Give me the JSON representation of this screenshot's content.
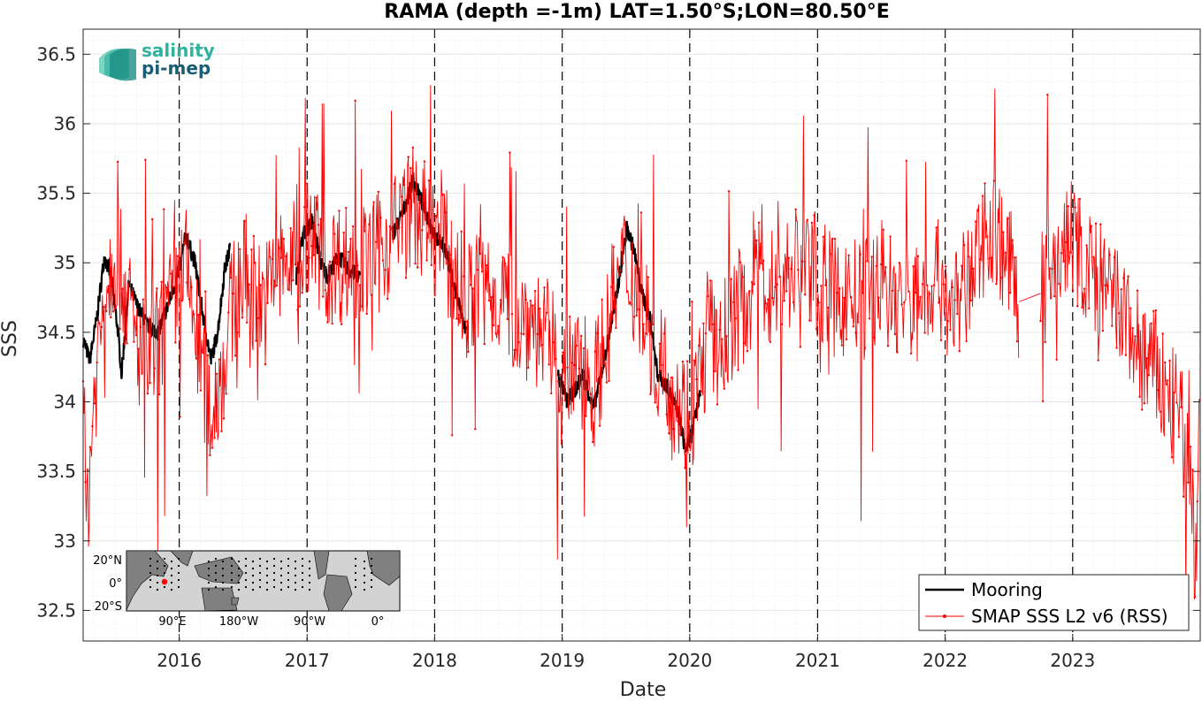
{
  "chart_data": {
    "type": "line",
    "title": "RAMA (depth =-1m) LAT=1.50°S;LON=80.50°E",
    "xlabel": "Date",
    "ylabel": "SSS",
    "x_type": "date",
    "xlim": [
      "2015-04-01",
      "2024-01-01"
    ],
    "ylim": [
      32.28,
      36.68
    ],
    "yticks": [
      32.5,
      33,
      33.5,
      34,
      34.5,
      35,
      35.5,
      36,
      36.5
    ],
    "ytick_labels": [
      "32.5",
      "33",
      "33.5",
      "34",
      "34.5",
      "35",
      "35.5",
      "36",
      "36.5"
    ],
    "xticks": [
      "2016-01-01",
      "2017-01-01",
      "2018-01-01",
      "2019-01-01",
      "2020-01-01",
      "2021-01-01",
      "2022-01-01",
      "2023-01-01"
    ],
    "xtick_labels": [
      "2016",
      "2017",
      "2018",
      "2019",
      "2020",
      "2021",
      "2022",
      "2023"
    ],
    "year_dividers": "dashed black vertical lines at each January 1",
    "grid": true,
    "legend_placement": "bottom-right",
    "series": [
      {
        "name": "Mooring",
        "color": "#000000",
        "style": "thick line",
        "segments": [
          [
            [
              "2015-04-01",
              34.45
            ],
            [
              "2015-04-20",
              34.3
            ],
            [
              "2015-05-10",
              34.6
            ],
            [
              "2015-06-01",
              35.05
            ],
            [
              "2015-06-20",
              34.9
            ],
            [
              "2015-07-10",
              34.5
            ],
            [
              "2015-07-20",
              34.2
            ],
            [
              "2015-08-10",
              34.85
            ],
            [
              "2015-09-01",
              34.7
            ],
            [
              "2015-10-01",
              34.55
            ],
            [
              "2015-11-01",
              34.5
            ],
            [
              "2015-12-01",
              34.7
            ],
            [
              "2016-01-01",
              34.95
            ],
            [
              "2016-01-20",
              35.2
            ],
            [
              "2016-02-15",
              35.0
            ],
            [
              "2016-03-10",
              34.6
            ],
            [
              "2016-04-01",
              34.3
            ],
            [
              "2016-04-20",
              34.5
            ],
            [
              "2016-05-10",
              34.95
            ],
            [
              "2016-05-25",
              35.1
            ]
          ],
          [
            [
              "2016-12-01",
              34.9
            ],
            [
              "2016-12-20",
              35.2
            ],
            [
              "2017-01-15",
              35.3
            ],
            [
              "2017-02-10",
              35.0
            ],
            [
              "2017-03-01",
              34.9
            ],
            [
              "2017-04-01",
              35.05
            ],
            [
              "2017-05-01",
              34.95
            ],
            [
              "2017-06-01",
              34.9
            ]
          ],
          [
            [
              "2017-09-01",
              35.2
            ],
            [
              "2017-10-01",
              35.35
            ],
            [
              "2017-11-01",
              35.6
            ],
            [
              "2017-12-01",
              35.4
            ],
            [
              "2018-01-01",
              35.2
            ],
            [
              "2018-02-01",
              35.1
            ],
            [
              "2018-03-01",
              34.8
            ],
            [
              "2018-04-01",
              34.5
            ]
          ],
          [
            [
              "2018-12-20",
              34.2
            ],
            [
              "2019-01-15",
              34.0
            ],
            [
              "2019-02-10",
              34.1
            ],
            [
              "2019-03-01",
              34.2
            ],
            [
              "2019-04-01",
              33.95
            ],
            [
              "2019-05-01",
              34.3
            ],
            [
              "2019-06-01",
              34.7
            ],
            [
              "2019-06-20",
              35.0
            ],
            [
              "2019-07-05",
              35.25
            ],
            [
              "2019-07-25",
              35.1
            ],
            [
              "2019-08-15",
              34.8
            ],
            [
              "2019-09-10",
              34.6
            ],
            [
              "2019-10-01",
              34.2
            ],
            [
              "2019-11-01",
              34.1
            ],
            [
              "2019-12-01",
              33.9
            ],
            [
              "2019-12-20",
              33.65
            ],
            [
              "2020-01-10",
              33.8
            ],
            [
              "2020-02-01",
              34.1
            ]
          ]
        ]
      },
      {
        "name": "SMAP SSS L2 v6 (RSS)",
        "color": "#ff0000",
        "style": "thin line with point markers",
        "segments": [
          [
            [
              "2015-04-01",
              34.2
            ],
            [
              "2015-04-10",
              33.1
            ],
            [
              "2015-05-01",
              34.0
            ],
            [
              "2015-06-01",
              34.8
            ],
            [
              "2015-07-01",
              35.1
            ],
            [
              "2015-08-01",
              34.8
            ],
            [
              "2015-09-01",
              34.4
            ],
            [
              "2015-10-01",
              34.3
            ],
            [
              "2015-11-01",
              34.4
            ],
            [
              "2015-12-01",
              34.6
            ],
            [
              "2016-01-01",
              34.9
            ],
            [
              "2016-02-01",
              34.8
            ],
            [
              "2016-03-01",
              34.3
            ],
            [
              "2016-04-01",
              33.9
            ],
            [
              "2016-05-01",
              34.2
            ],
            [
              "2016-06-01",
              34.7
            ],
            [
              "2016-07-01",
              34.9
            ],
            [
              "2016-08-01",
              34.8
            ],
            [
              "2016-09-01",
              34.7
            ],
            [
              "2016-10-01",
              34.9
            ],
            [
              "2016-11-01",
              35.0
            ],
            [
              "2016-12-01",
              35.0
            ],
            [
              "2017-01-01",
              35.2
            ],
            [
              "2017-02-01",
              35.1
            ],
            [
              "2017-03-01",
              35.0
            ],
            [
              "2017-04-01",
              35.0
            ],
            [
              "2017-05-01",
              35.0
            ],
            [
              "2017-06-01",
              35.0
            ],
            [
              "2017-07-01",
              35.0
            ],
            [
              "2017-08-01",
              35.1
            ],
            [
              "2017-09-01",
              35.2
            ],
            [
              "2017-10-01",
              35.3
            ],
            [
              "2017-11-01",
              35.4
            ],
            [
              "2017-12-01",
              35.3
            ],
            [
              "2018-01-01",
              35.2
            ],
            [
              "2018-02-01",
              35.1
            ],
            [
              "2018-03-01",
              34.9
            ],
            [
              "2018-04-01",
              34.7
            ],
            [
              "2018-05-01",
              34.8
            ],
            [
              "2018-06-01",
              34.9
            ],
            [
              "2018-07-01",
              34.8
            ],
            [
              "2018-08-01",
              34.7
            ],
            [
              "2018-09-01",
              34.6
            ],
            [
              "2018-10-01",
              34.6
            ],
            [
              "2018-11-01",
              34.5
            ],
            [
              "2018-12-01",
              34.4
            ],
            [
              "2019-01-01",
              34.1
            ],
            [
              "2019-02-01",
              34.2
            ],
            [
              "2019-03-01",
              34.3
            ],
            [
              "2019-04-01",
              34.1
            ],
            [
              "2019-05-01",
              34.4
            ],
            [
              "2019-06-01",
              34.8
            ],
            [
              "2019-07-01",
              35.0
            ],
            [
              "2019-08-01",
              34.8
            ],
            [
              "2019-09-01",
              34.6
            ],
            [
              "2019-10-01",
              34.3
            ],
            [
              "2019-11-01",
              34.2
            ],
            [
              "2019-12-01",
              34.0
            ],
            [
              "2020-01-01",
              33.9
            ],
            [
              "2020-02-01",
              34.2
            ],
            [
              "2020-03-01",
              34.5
            ],
            [
              "2020-04-01",
              34.4
            ],
            [
              "2020-05-01",
              34.6
            ],
            [
              "2020-06-01",
              34.7
            ],
            [
              "2020-07-01",
              34.8
            ],
            [
              "2020-08-01",
              34.9
            ],
            [
              "2020-09-01",
              34.8
            ],
            [
              "2020-10-01",
              34.9
            ],
            [
              "2020-11-01",
              35.0
            ],
            [
              "2020-12-01",
              35.0
            ],
            [
              "2021-01-01",
              34.9
            ],
            [
              "2021-02-01",
              34.8
            ],
            [
              "2021-03-01",
              34.7
            ],
            [
              "2021-04-01",
              34.8
            ],
            [
              "2021-05-01",
              34.7
            ],
            [
              "2021-06-01",
              34.8
            ],
            [
              "2021-07-01",
              34.9
            ],
            [
              "2021-08-01",
              34.8
            ],
            [
              "2021-09-01",
              34.7
            ],
            [
              "2021-10-01",
              34.7
            ],
            [
              "2021-11-01",
              34.8
            ],
            [
              "2021-12-01",
              34.9
            ],
            [
              "2022-01-01",
              34.8
            ],
            [
              "2022-02-01",
              34.7
            ],
            [
              "2022-03-01",
              34.8
            ],
            [
              "2022-04-01",
              35.0
            ],
            [
              "2022-05-01",
              35.3
            ],
            [
              "2022-06-01",
              35.2
            ],
            [
              "2022-07-01",
              35.0
            ],
            [
              "2022-08-01",
              34.72
            ]
          ],
          [
            [
              "2022-10-01",
              34.78
            ],
            [
              "2022-11-01",
              34.9
            ],
            [
              "2022-12-01",
              35.1
            ],
            [
              "2023-01-01",
              35.2
            ],
            [
              "2023-02-01",
              35.0
            ],
            [
              "2023-03-01",
              34.9
            ],
            [
              "2023-04-01",
              34.8
            ],
            [
              "2023-05-01",
              34.7
            ],
            [
              "2023-06-01",
              34.6
            ],
            [
              "2023-07-01",
              34.4
            ],
            [
              "2023-08-01",
              34.3
            ],
            [
              "2023-09-01",
              34.2
            ],
            [
              "2023-10-01",
              34.0
            ],
            [
              "2023-11-01",
              33.9
            ],
            [
              "2023-12-01",
              33.5
            ],
            [
              "2023-12-20",
              32.9
            ],
            [
              "2024-01-01",
              34.1
            ]
          ]
        ]
      }
    ]
  },
  "logo": {
    "line1": "salinity",
    "line2": "pi-mep"
  },
  "inset_map": {
    "lat_labels": [
      "20°N",
      "0°",
      "20°S"
    ],
    "lon_labels": [
      "90°E",
      "180°W",
      "90°W",
      "0°"
    ],
    "location_marker_color": "#ff0000",
    "land_color": "#808080",
    "ocean_color": "#d3d3d3",
    "mooring_dot_color": "#000000"
  }
}
